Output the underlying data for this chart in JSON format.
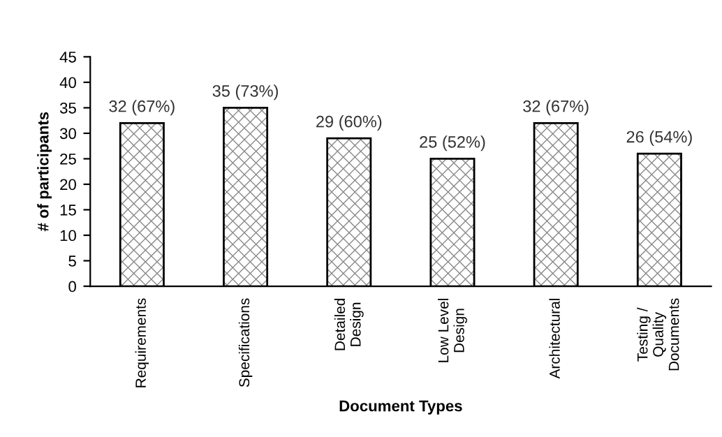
{
  "chart_data": {
    "type": "bar",
    "xlabel": "Document Types",
    "ylabel": "# of participants",
    "categories": [
      "Requirements",
      "Specifications",
      "Detailed\nDesign",
      "Low Level\nDesign",
      "Architectural",
      "Testing /\nQuality\nDocuments"
    ],
    "values": [
      32,
      35,
      29,
      25,
      32,
      26
    ],
    "value_labels": [
      "32 (67%)",
      "35 (73%)",
      "29 (60%)",
      "25 (52%)",
      "32 (67%)",
      "26 (54%)"
    ],
    "ylim": [
      0,
      45
    ],
    "yticks": [
      0,
      5,
      10,
      15,
      20,
      25,
      30,
      35,
      40,
      45
    ],
    "grid": false,
    "legend": false
  }
}
